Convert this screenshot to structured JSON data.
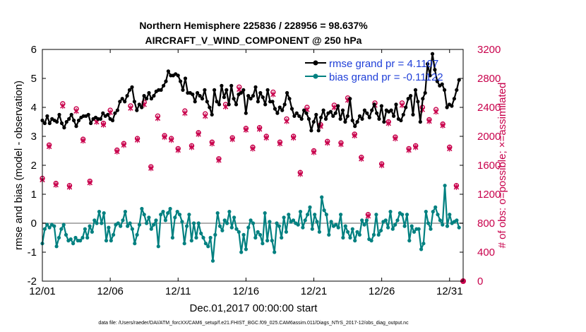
{
  "chart_data": {
    "type": "line",
    "title": "Northern Hemisphere 225836 / 228956 = 98.637%",
    "subtitle": "AIRCRAFT_V_WIND_COMPONENT @ 250 hPa",
    "xlabel": "Dec.01,2017 00:00:00 start",
    "ylabel": "rmse and bias (model - observation)",
    "ylabel_right": "# of obs: o=possible; ×=assimilated",
    "xlim": [
      1,
      32
    ],
    "ylim": [
      -2,
      6
    ],
    "ylim_right": [
      0,
      3200
    ],
    "x_tick_labels": [
      "12/01",
      "12/06",
      "12/11",
      "12/16",
      "12/21",
      "12/26",
      "12/31"
    ],
    "x_tick_values": [
      1,
      6,
      11,
      16,
      21,
      26,
      31
    ],
    "y_ticks": [
      -2,
      -1,
      0,
      1,
      2,
      3,
      4,
      5,
      6
    ],
    "y_ticks_right": [
      0,
      400,
      800,
      1200,
      1600,
      2000,
      2400,
      2800,
      3200
    ],
    "zero_line": 0,
    "legend": [
      "rmse grand pr = 4.1107",
      "bias grand pr = -0.11122"
    ],
    "colors": {
      "rmse": "#000000",
      "bias": "#008080",
      "obs": "#c8004b",
      "zero": "#b0b0b0"
    },
    "footnote": "data file: /Users/raeder/DAI/ATM_forcXX/CAM6_setup/f.e21.FHIST_BGC.f09_025.CAM6assim.011/Diags_NTrS_2017-12/obs_diag_output.nc",
    "series": [
      {
        "name": "rmse",
        "values": [
          3.55,
          3.45,
          3.7,
          3.45,
          3.6,
          3.55,
          3.5,
          3.75,
          3.45,
          3.3,
          3.5,
          3.6,
          3.75,
          3.55,
          3.35,
          3.55,
          3.65,
          3.7,
          3.7,
          3.75,
          3.45,
          3.6,
          3.65,
          3.6,
          3.6,
          3.8,
          3.7,
          3.75,
          3.6,
          3.55,
          3.8,
          3.9,
          4.2,
          4.3,
          4.2,
          4.4,
          4.6,
          4.7,
          4.2,
          3.9,
          4.1,
          4.0,
          4.4,
          4.3,
          4.5,
          4.3,
          4.4,
          4.55,
          4.6,
          4.6,
          4.75,
          4.9,
          5.25,
          5.1,
          5.1,
          5.15,
          5.1,
          4.9,
          4.6,
          5.0,
          4.5,
          4.5,
          4.45,
          4.2,
          4.5,
          4.4,
          4.3,
          4.6,
          4.2,
          4.0,
          3.75,
          4.6,
          4.2,
          4.1,
          4.75,
          4.35,
          4.6,
          4.1,
          4.75,
          4.3,
          4.1,
          4.45,
          4.5,
          4.6,
          3.8,
          4.4,
          4.3,
          4.4,
          4.7,
          4.2,
          4.5,
          4.35,
          4.1,
          4.6,
          4.2,
          4.2,
          3.95,
          3.8,
          4.0,
          3.9,
          4.1,
          4.5,
          4.3,
          3.95,
          3.7,
          3.8,
          3.7,
          3.6,
          3.9,
          3.8,
          3.6,
          3.2,
          3.5,
          3.75,
          3.2,
          3.65,
          3.9,
          3.6,
          3.8,
          3.85,
          3.7,
          3.8,
          4.05,
          3.6,
          3.9,
          3.5,
          3.7,
          4.3,
          3.55,
          3.35,
          3.5,
          3.7,
          3.6,
          3.9,
          3.8,
          3.65,
          3.9,
          4.1,
          3.8,
          3.6,
          4.05,
          3.5,
          3.9,
          3.85,
          3.9,
          3.7,
          4.1,
          3.6,
          3.55,
          3.75,
          4.0,
          4.3,
          4.4,
          3.75,
          4.6,
          4.2,
          3.5,
          4.3,
          4.5,
          5.5,
          5.1,
          5.85,
          5.3,
          4.9,
          4.75,
          4.8,
          4.6,
          4.0,
          4.1,
          4.05,
          4.3,
          4.6,
          4.95
        ]
      },
      {
        "name": "bias",
        "values": [
          -0.7,
          -0.2,
          -0.05,
          -0.15,
          -0.05,
          -0.1,
          -0.8,
          -0.5,
          -0.2,
          -0.05,
          -0.4,
          -0.6,
          -0.55,
          -0.7,
          -0.5,
          -0.6,
          -0.6,
          -0.5,
          -0.2,
          -0.5,
          -0.1,
          -0.3,
          0.1,
          0.0,
          0.4,
          0.0,
          0.35,
          -0.6,
          -0.15,
          -0.6,
          -0.4,
          -0.05,
          0.0,
          -0.1,
          0.1,
          0.4,
          -0.1,
          0.0,
          -0.2,
          -0.7,
          -0.4,
          -0.05,
          0.5,
          0.3,
          0.0,
          0.2,
          -0.2,
          -0.05,
          0.1,
          -0.8,
          0.3,
          0.4,
          0.1,
          0.35,
          0.5,
          -0.5,
          0.2,
          0.4,
          0.3,
          0.05,
          -0.7,
          -0.1,
          0.3,
          -0.6,
          0.0,
          -0.5,
          0.0,
          -0.35,
          -0.5,
          -0.7,
          -0.8,
          -0.5,
          -1.3,
          -0.4,
          0.35,
          -0.1,
          -0.25,
          0.1,
          0.0,
          0.4,
          -0.15,
          0.2,
          -0.2,
          -0.3,
          -1.0,
          -0.4,
          -0.9,
          -0.15,
          0.1,
          0.0,
          -0.5,
          -0.3,
          -0.4,
          -0.7,
          0.35,
          -0.6,
          0.05,
          -0.6,
          -1.0,
          0.0,
          -0.1,
          -0.5,
          0.2,
          -0.3,
          0.3,
          0.05,
          0.1,
          0.0,
          -0.05,
          0.4,
          -0.15,
          0.1,
          0.3,
          0.55,
          -0.2,
          0.3,
          0.05,
          -0.3,
          0.9,
          0.45,
          0.3,
          -0.4,
          0.05,
          -0.1,
          -0.05,
          -0.15,
          0.3,
          -0.5,
          -0.1,
          -0.3,
          -0.5,
          -0.2,
          -0.6,
          -0.3,
          -0.4,
          0.1,
          -0.05,
          0.1,
          -0.55,
          -0.6,
          -0.4,
          0.3,
          -0.4,
          -0.25,
          0.05,
          0.1,
          -0.15,
          0.4,
          -0.2,
          -0.05,
          0.1,
          0.35,
          0.3,
          -0.1,
          0.3,
          -0.6,
          -0.1,
          -0.3,
          -0.2,
          -0.2,
          -0.9,
          -0.7,
          0.4,
          0.0,
          -0.2,
          0.4,
          0.55,
          0.3,
          0.1,
          -0.05,
          1.3,
          -0.1,
          0.3,
          0.0,
          0.05,
          0.1,
          -0.15
        ]
      },
      {
        "name": "obs_possible",
        "x": [
          1,
          1.5,
          2,
          2.5,
          3,
          3.5,
          4,
          4.5,
          5,
          5.5,
          6,
          6.5,
          7,
          7.5,
          8,
          8.5,
          9,
          9.5,
          10,
          10.5,
          11,
          11.5,
          12,
          12.5,
          13,
          13.5,
          14,
          14.5,
          15,
          15.5,
          16,
          16.5,
          17,
          17.5,
          18,
          18.5,
          19,
          19.5,
          20,
          20.5,
          21,
          21.5,
          22,
          22.5,
          23,
          23.5,
          24,
          24.5,
          25,
          25.5,
          26,
          26.5,
          27,
          27.5,
          28,
          28.5,
          29,
          29.5,
          30,
          30.5,
          31,
          31.5
        ],
        "values": [
          1420,
          1880,
          1350,
          2450,
          1320,
          2380,
          1960,
          1380,
          2230,
          2180,
          2360,
          1810,
          1900,
          2420,
          1970,
          2470,
          1580,
          2280,
          2010,
          1970,
          1830,
          2350,
          1870,
          2050,
          2310,
          1920,
          1690,
          2440,
          1980,
          2680,
          2110,
          1850,
          2120,
          2000,
          2610,
          1920,
          2240,
          2000,
          1500,
          2400,
          1800,
          2160,
          1930,
          2430,
          1910,
          2530,
          2030,
          1710,
          920,
          2460,
          1620,
          2200,
          1990,
          2460,
          1830,
          1870,
          2400,
          2230,
          2370,
          2170,
          1850,
          1320
        ]
      },
      {
        "name": "obs_assimilated",
        "x": [
          1,
          1.5,
          2,
          2.5,
          3,
          3.5,
          4,
          4.5,
          5,
          5.5,
          6,
          6.5,
          7,
          7.5,
          8,
          8.5,
          9,
          9.5,
          10,
          10.5,
          11,
          11.5,
          12,
          12.5,
          13,
          13.5,
          14,
          14.5,
          15,
          15.5,
          16,
          16.5,
          17,
          17.5,
          18,
          18.5,
          19,
          19.5,
          20,
          20.5,
          21,
          21.5,
          22,
          22.5,
          23,
          23.5,
          24,
          24.5,
          25,
          25.5,
          26,
          26.5,
          27,
          27.5,
          28,
          28.5,
          29,
          29.5,
          30,
          30.5,
          31,
          31.5
        ],
        "values": [
          1400,
          1860,
          1330,
          2420,
          1300,
          2350,
          1940,
          1360,
          2200,
          2160,
          2330,
          1790,
          1880,
          2390,
          1950,
          2440,
          1560,
          2250,
          1990,
          1950,
          1810,
          2320,
          1850,
          2030,
          2280,
          1900,
          1670,
          2410,
          1960,
          2650,
          2090,
          1830,
          2100,
          1980,
          2580,
          1900,
          2210,
          1980,
          1480,
          2370,
          1780,
          2140,
          1910,
          2400,
          1890,
          2500,
          2010,
          1690,
          900,
          2430,
          1600,
          2180,
          1970,
          2430,
          1810,
          1850,
          2370,
          2210,
          2340,
          2150,
          1830,
          1300
        ]
      }
    ]
  }
}
